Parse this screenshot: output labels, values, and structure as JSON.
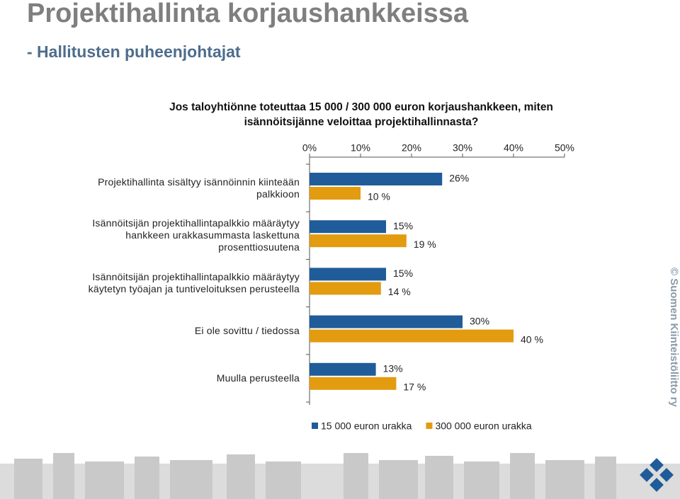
{
  "slide_title": "Projektihallinta korjaushankkeissa",
  "slide_subtitle": "- Hallitusten puheenjohtajat",
  "copyright": "© Suomen Kiinteistöliitto ry",
  "chart_data": {
    "type": "hbar",
    "title": "Jos taloyhtiönne toteuttaa 15 000 / 300 000 euron korjaushankkeen, miten isännöitsijänne veloittaa projektihallinnasta?",
    "categories": [
      "Projektihallinta sisältyy isännöinnin kiinteään palkkioon",
      "Isännöitsijän projektihallintapalkkio määräytyy hankkeen urakkasummasta laskettuna prosenttiosuutena",
      "Isännöitsijän projektihallintapalkkio määräytyy käytetyn työajan ja tuntiveloituksen perusteella",
      "Ei ole sovittu / tiedossa",
      "Muulla perusteella"
    ],
    "series": [
      {
        "name": "15 000 euron urakka",
        "color": "#1f5c99",
        "values": [
          26,
          15,
          15,
          30,
          13
        ],
        "value_labels": [
          "26%",
          "15%",
          "15%",
          "30%",
          "13%"
        ]
      },
      {
        "name": "300 000 euron urakka",
        "color": "#e39b0f",
        "values": [
          10,
          19,
          14,
          40,
          17
        ],
        "value_labels": [
          "10 %",
          "19 %",
          "14 %",
          "40 %",
          "17 %"
        ]
      }
    ],
    "xlim": [
      0,
      50
    ],
    "xticks": [
      {
        "value": 0,
        "label": "0%"
      },
      {
        "value": 10,
        "label": "10%"
      },
      {
        "value": 20,
        "label": "20%"
      },
      {
        "value": 30,
        "label": "30%"
      },
      {
        "value": 40,
        "label": "40%"
      },
      {
        "value": 50,
        "label": "50%"
      }
    ],
    "legend": "bottom"
  }
}
